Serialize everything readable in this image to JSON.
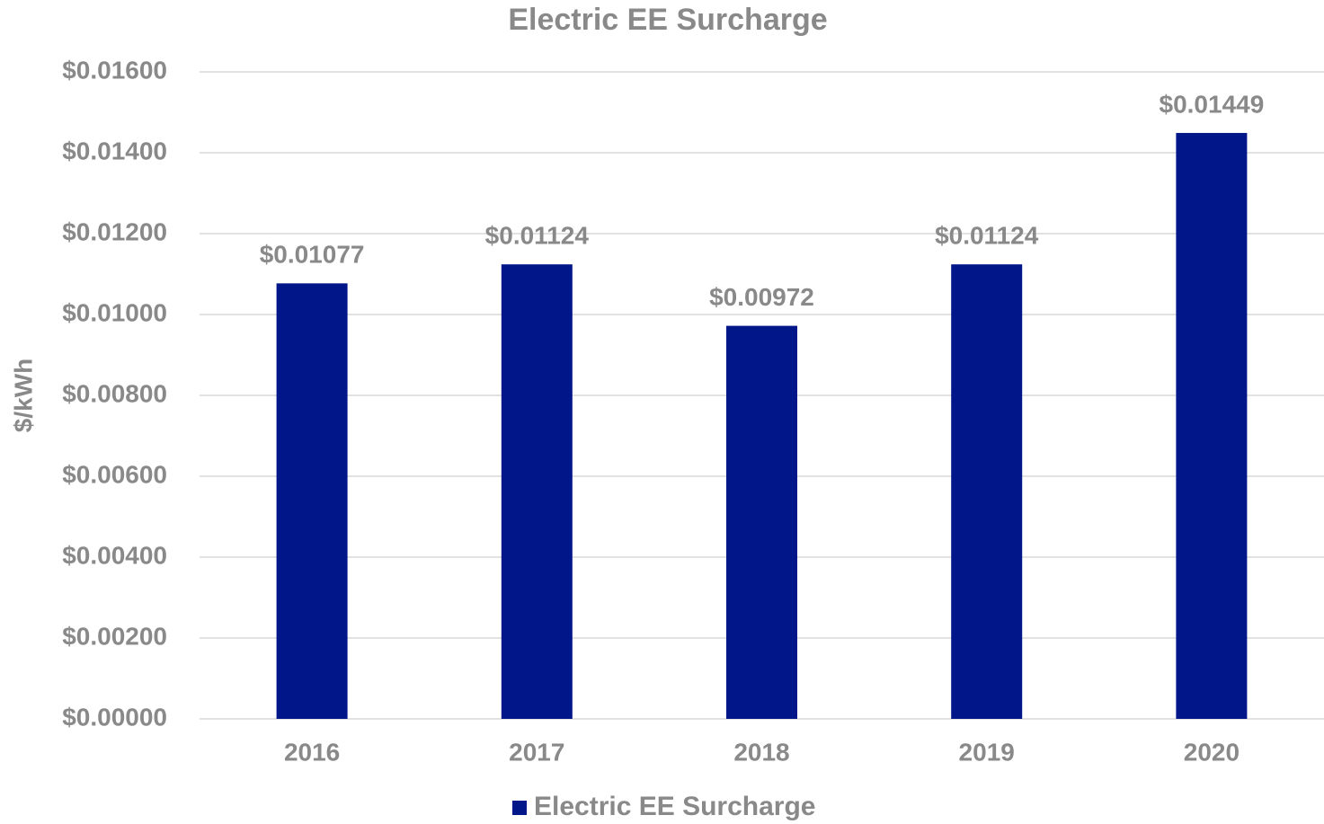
{
  "chart_data": {
    "type": "bar",
    "title": "Electric EE Surcharge",
    "y_label": "$/kWh",
    "categories": [
      "2016",
      "2017",
      "2018",
      "2019",
      "2020"
    ],
    "series": [
      {
        "name": "Electric EE Surcharge",
        "color": "#001689",
        "values": [
          0.01077,
          0.01124,
          0.00972,
          0.01124,
          0.01449
        ],
        "value_labels": [
          "$0.01077",
          "$0.01124",
          "$0.00972",
          "$0.01124",
          "$0.01449"
        ]
      }
    ],
    "ylim": [
      0,
      0.016
    ],
    "yticks": [
      {
        "value": 0,
        "label": "$0.00000"
      },
      {
        "value": 0.002,
        "label": "$0.00200"
      },
      {
        "value": 0.004,
        "label": "$0.00400"
      },
      {
        "value": 0.006,
        "label": "$0.00600"
      },
      {
        "value": 0.008,
        "label": "$0.00800"
      },
      {
        "value": 0.01,
        "label": "$0.01000"
      },
      {
        "value": 0.012,
        "label": "$0.01200"
      },
      {
        "value": 0.014,
        "label": "$0.01400"
      },
      {
        "value": 0.016,
        "label": "$0.01600"
      }
    ],
    "grid": true,
    "legend": "bottom"
  }
}
